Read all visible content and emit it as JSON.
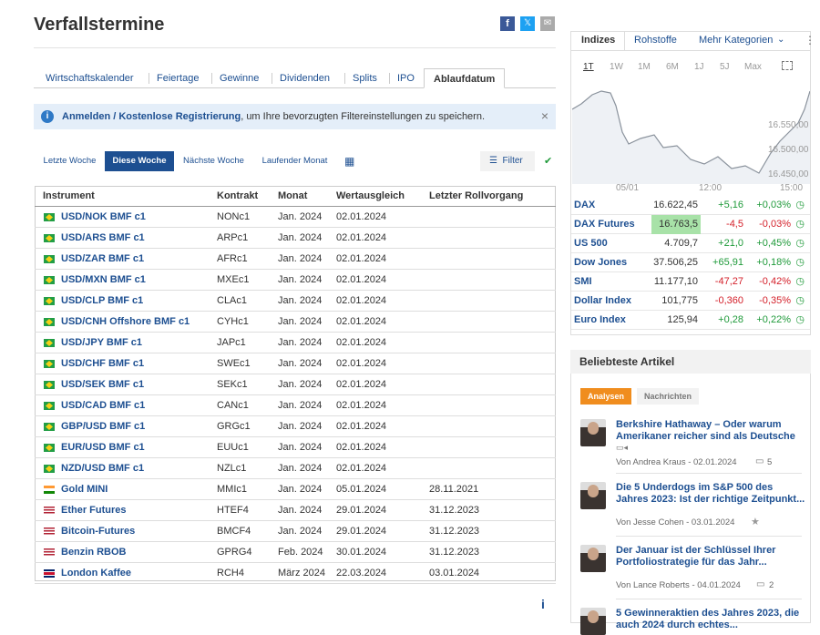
{
  "header": {
    "title": "Verfallstermine"
  },
  "tabs": [
    "Wirtschaftskalender",
    "Feiertage",
    "Gewinne",
    "Dividenden",
    "Splits",
    "IPO",
    "Ablaufdatum"
  ],
  "info_bar": {
    "link": "Anmelden / Kostenlose Registrierung",
    "text": ", um Ihre bevorzugten Filtereinstellungen zu speichern.",
    "close": "×"
  },
  "filters": [
    "Letzte Woche",
    "Diese Woche",
    "Nächste Woche",
    "Laufender Monat"
  ],
  "filter_button": "Filter",
  "table": {
    "columns": [
      "Instrument",
      "Kontrakt",
      "Monat",
      "Wertausgleich",
      "Letzter Rollvorgang"
    ],
    "rows": [
      [
        "USD/NOK BMF c1",
        "NONc1",
        "Jan. 2024",
        "02.01.2024"
      ],
      [
        "USD/ARS BMF c1",
        "ARPc1",
        "Jan. 2024",
        "02.01.2024"
      ],
      [
        "USD/ZAR BMF c1",
        "AFRc1",
        "Jan. 2024",
        "02.01.2024"
      ],
      [
        "USD/MXN BMF c1",
        "MXEc1",
        "Jan. 2024",
        "02.01.2024"
      ],
      [
        "USD/CLP BMF c1",
        "CLAc1",
        "Jan. 2024",
        "02.01.2024"
      ],
      [
        "USD/CNH Offshore BMF c1",
        "CYHc1",
        "Jan. 2024",
        "02.01.2024"
      ],
      [
        "USD/JPY BMF c1",
        "JAPc1",
        "Jan. 2024",
        "02.01.2024"
      ],
      [
        "USD/CHF BMF c1",
        "SWEc1",
        "Jan. 2024",
        "02.01.2024"
      ],
      [
        "USD/SEK BMF c1",
        "SEKc1",
        "Jan. 2024",
        "02.01.2024"
      ],
      [
        "USD/CAD BMF c1",
        "CANc1",
        "Jan. 2024",
        "02.01.2024"
      ],
      [
        "GBP/USD BMF c1",
        "GRGc1",
        "Jan. 2024",
        "02.01.2024"
      ],
      [
        "EUR/USD BMF c1",
        "EUUc1",
        "Jan. 2024",
        "02.01.2024"
      ],
      [
        "NZD/USD BMF c1",
        "NZLc1",
        "Jan. 2024",
        "02.01.2024"
      ],
      [
        "Gold MINI",
        "MMIc1",
        "Jan. 2024",
        "05.01.2024",
        "28.11.2021"
      ],
      [
        "Ether Futures",
        "HTEF4",
        "Jan. 2024",
        "29.01.2024",
        "31.12.2023"
      ],
      [
        "Bitcoin-Futures",
        "BMCF4",
        "Jan. 2024",
        "29.01.2024",
        "31.12.2023"
      ],
      [
        "Benzin RBOB",
        "GPRG4",
        "Feb. 2024",
        "30.01.2024",
        "31.12.2023"
      ],
      [
        "London Kaffee",
        "RCH4",
        "März 2024",
        "22.03.2024",
        "03.01.2024"
      ]
    ]
  },
  "sidebar": {
    "tabs": [
      "Indizes",
      "Rohstoffe",
      "Mehr Kategorien"
    ],
    "ranges": [
      "1T",
      "1W",
      "1M",
      "6M",
      "1J",
      "5J",
      "Max"
    ],
    "chart": {
      "y_labels": [
        "16.550,00",
        "16.500,00",
        "16.450,00"
      ],
      "x_labels": [
        "05/01",
        "12:00",
        "15:00"
      ]
    },
    "indices": [
      [
        "DAX",
        "16.622,45",
        "+5,16",
        "+0,03%"
      ],
      [
        "DAX Futures",
        "16.763,5",
        "-4,5",
        "-0,03%"
      ],
      [
        "US 500",
        "4.709,7",
        "+21,0",
        "+0,45%"
      ],
      [
        "Dow Jones",
        "37.506,25",
        "+65,91",
        "+0,18%"
      ],
      [
        "SMI",
        "11.177,10",
        "-47,27",
        "-0,42%"
      ],
      [
        "Dollar Index",
        "101,775",
        "-0,360",
        "-0,35%"
      ],
      [
        "Euro Index",
        "125,94",
        "+0,28",
        "+0,22%"
      ]
    ]
  },
  "articles": {
    "title": "Beliebteste Artikel",
    "tabs": [
      "Analysen",
      "Nachrichten"
    ],
    "items": [
      {
        "title": "Berkshire Hathaway – Oder warum Amerikaner reicher sind als Deutsche",
        "meta": "Von Andrea Kraus - 02.01.2024",
        "comments": "5"
      },
      {
        "title": "Die 5 Underdogs im S&P 500 des Jahres 2023: Ist der richtige Zeitpunkt...",
        "meta": "Von Jesse Cohen - 03.01.2024"
      },
      {
        "title": "Der Januar ist der Schlüssel Ihrer Portfoliostrategie für das Jahr...",
        "meta": "Von Lance Roberts - 04.01.2024",
        "comments": "2"
      },
      {
        "title": "5 Gewinneraktien des Jahres 2023, die auch 2024 durch echtes..."
      }
    ]
  }
}
